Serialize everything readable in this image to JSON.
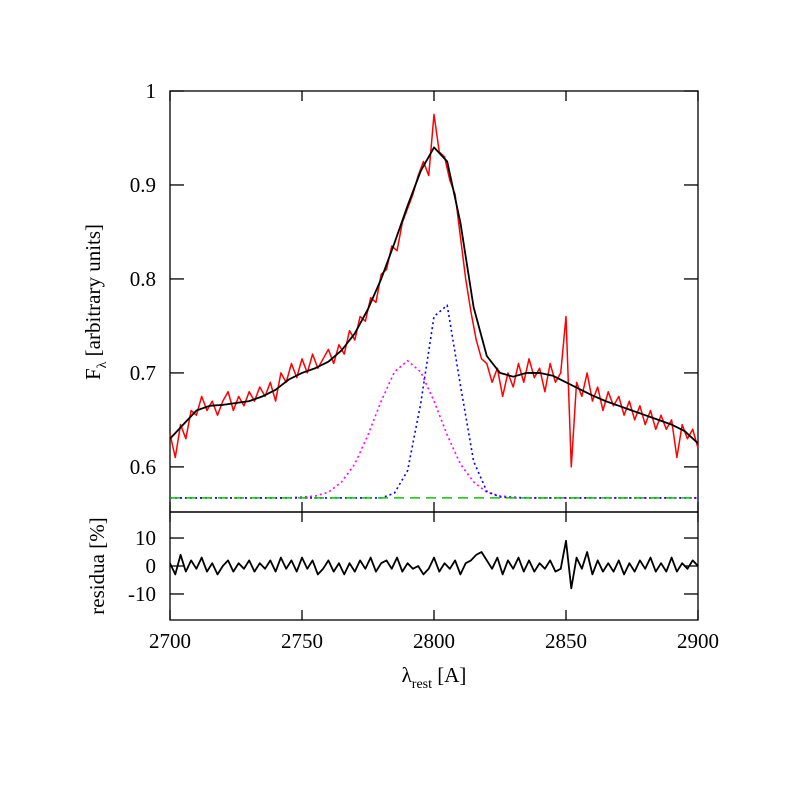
{
  "chart_data": [
    {
      "type": "line",
      "ylabel": {
        "main": "F",
        "sub": "λ",
        "rest": " [arbitrary units]"
      },
      "xlim": [
        2700,
        2900
      ],
      "ylim": [
        0.552,
        1
      ],
      "yticks": [
        0.6,
        0.7,
        0.8,
        0.9,
        1
      ],
      "series": [
        {
          "color": "#ff0000",
          "style": "solid",
          "width": 1.5,
          "x": [
            2700,
            2702,
            2704,
            2706,
            2708,
            2710,
            2712,
            2714,
            2716,
            2718,
            2720,
            2722,
            2724,
            2726,
            2728,
            2730,
            2732,
            2734,
            2736,
            2738,
            2740,
            2742,
            2744,
            2746,
            2748,
            2750,
            2752,
            2754,
            2756,
            2758,
            2760,
            2762,
            2764,
            2766,
            2768,
            2770,
            2772,
            2774,
            2776,
            2778,
            2780,
            2782,
            2784,
            2786,
            2788,
            2790,
            2792,
            2794,
            2796,
            2798,
            2800,
            2802,
            2804,
            2806,
            2808,
            2810,
            2812,
            2814,
            2816,
            2818,
            2820,
            2822,
            2824,
            2826,
            2828,
            2830,
            2832,
            2834,
            2836,
            2838,
            2840,
            2842,
            2844,
            2846,
            2848,
            2850,
            2852,
            2854,
            2856,
            2858,
            2860,
            2862,
            2864,
            2866,
            2868,
            2870,
            2872,
            2874,
            2876,
            2878,
            2880,
            2882,
            2884,
            2886,
            2888,
            2890,
            2892,
            2894,
            2896,
            2898,
            2900
          ],
          "values": [
            0.635,
            0.61,
            0.645,
            0.63,
            0.66,
            0.655,
            0.675,
            0.66,
            0.67,
            0.655,
            0.67,
            0.68,
            0.66,
            0.675,
            0.665,
            0.68,
            0.67,
            0.685,
            0.675,
            0.69,
            0.67,
            0.7,
            0.69,
            0.71,
            0.695,
            0.715,
            0.7,
            0.72,
            0.705,
            0.715,
            0.725,
            0.71,
            0.73,
            0.72,
            0.745,
            0.735,
            0.76,
            0.755,
            0.78,
            0.775,
            0.805,
            0.81,
            0.835,
            0.83,
            0.86,
            0.875,
            0.89,
            0.91,
            0.925,
            0.91,
            0.975,
            0.935,
            0.93,
            0.905,
            0.89,
            0.845,
            0.8,
            0.765,
            0.735,
            0.715,
            0.71,
            0.69,
            0.705,
            0.675,
            0.7,
            0.685,
            0.71,
            0.69,
            0.715,
            0.695,
            0.705,
            0.68,
            0.71,
            0.69,
            0.7,
            0.76,
            0.6,
            0.69,
            0.675,
            0.7,
            0.67,
            0.685,
            0.66,
            0.68,
            0.665,
            0.675,
            0.655,
            0.67,
            0.65,
            0.665,
            0.645,
            0.66,
            0.64,
            0.655,
            0.64,
            0.65,
            0.61,
            0.645,
            0.63,
            0.64,
            0.62
          ]
        },
        {
          "color": "#ff00ff",
          "style": "dotted",
          "width": 1.6,
          "x": [
            2700,
            2705,
            2710,
            2715,
            2720,
            2725,
            2730,
            2735,
            2740,
            2745,
            2750,
            2755,
            2760,
            2765,
            2770,
            2775,
            2780,
            2785,
            2790,
            2795,
            2800,
            2805,
            2810,
            2815,
            2820,
            2825,
            2830,
            2835,
            2840,
            2845,
            2850,
            2855,
            2860,
            2865,
            2870,
            2875,
            2880,
            2885,
            2890,
            2895,
            2900
          ],
          "values": [
            0.567,
            0.567,
            0.567,
            0.567,
            0.567,
            0.567,
            0.567,
            0.567,
            0.567,
            0.567,
            0.568,
            0.569,
            0.573,
            0.584,
            0.603,
            0.634,
            0.67,
            0.701,
            0.713,
            0.701,
            0.67,
            0.634,
            0.603,
            0.584,
            0.573,
            0.569,
            0.568,
            0.567,
            0.567,
            0.567,
            0.567,
            0.567,
            0.567,
            0.567,
            0.567,
            0.567,
            0.567,
            0.567,
            0.567,
            0.567,
            0.567
          ]
        },
        {
          "color": "#0000ff",
          "style": "dotted",
          "width": 1.6,
          "x": [
            2700,
            2705,
            2710,
            2715,
            2720,
            2725,
            2730,
            2735,
            2740,
            2745,
            2750,
            2755,
            2760,
            2765,
            2770,
            2775,
            2780,
            2785,
            2790,
            2795,
            2800,
            2805,
            2810,
            2815,
            2820,
            2825,
            2830,
            2835,
            2840,
            2845,
            2850,
            2855,
            2860,
            2865,
            2870,
            2875,
            2880,
            2885,
            2890,
            2895,
            2900
          ],
          "values": [
            0.567,
            0.567,
            0.567,
            0.567,
            0.567,
            0.567,
            0.567,
            0.567,
            0.567,
            0.567,
            0.567,
            0.567,
            0.567,
            0.567,
            0.567,
            0.567,
            0.567,
            0.572,
            0.596,
            0.668,
            0.76,
            0.772,
            0.687,
            0.606,
            0.574,
            0.568,
            0.567,
            0.567,
            0.567,
            0.567,
            0.567,
            0.567,
            0.567,
            0.567,
            0.567,
            0.567,
            0.567,
            0.567,
            0.567,
            0.567,
            0.567
          ]
        },
        {
          "color": "#00cc00",
          "style": "dashed",
          "width": 1.5,
          "x": [
            2700,
            2900
          ],
          "values": [
            0.567,
            0.567
          ]
        },
        {
          "color": "#000000",
          "style": "solid",
          "width": 1.8,
          "x": [
            2700,
            2705,
            2710,
            2715,
            2720,
            2725,
            2730,
            2735,
            2740,
            2745,
            2750,
            2755,
            2760,
            2765,
            2770,
            2775,
            2780,
            2785,
            2790,
            2795,
            2800,
            2805,
            2810,
            2815,
            2820,
            2825,
            2830,
            2835,
            2840,
            2845,
            2850,
            2855,
            2860,
            2865,
            2870,
            2875,
            2880,
            2885,
            2890,
            2895,
            2900
          ],
          "values": [
            0.63,
            0.645,
            0.66,
            0.665,
            0.666,
            0.668,
            0.67,
            0.675,
            0.682,
            0.693,
            0.7,
            0.705,
            0.712,
            0.724,
            0.742,
            0.768,
            0.8,
            0.838,
            0.878,
            0.915,
            0.94,
            0.925,
            0.86,
            0.77,
            0.718,
            0.7,
            0.696,
            0.7,
            0.7,
            0.697,
            0.69,
            0.683,
            0.676,
            0.67,
            0.665,
            0.66,
            0.655,
            0.65,
            0.645,
            0.638,
            0.625
          ]
        }
      ]
    },
    {
      "type": "line",
      "ylabel": "residua [%]",
      "xlabel": {
        "main": "λ",
        "sub": "rest",
        "rest": " [A]"
      },
      "xlim": [
        2700,
        2900
      ],
      "ylim": [
        -19.3,
        19.3
      ],
      "xticks": [
        2700,
        2750,
        2800,
        2850,
        2900
      ],
      "yticks": [
        -10,
        0,
        10
      ],
      "series": [
        {
          "color": "#000000",
          "style": "solid",
          "width": 1.8,
          "x": [
            2700,
            2702,
            2704,
            2706,
            2708,
            2710,
            2712,
            2714,
            2716,
            2718,
            2720,
            2722,
            2724,
            2726,
            2728,
            2730,
            2732,
            2734,
            2736,
            2738,
            2740,
            2742,
            2744,
            2746,
            2748,
            2750,
            2752,
            2754,
            2756,
            2758,
            2760,
            2762,
            2764,
            2766,
            2768,
            2770,
            2772,
            2774,
            2776,
            2778,
            2780,
            2782,
            2784,
            2786,
            2788,
            2790,
            2792,
            2794,
            2796,
            2798,
            2800,
            2802,
            2804,
            2806,
            2808,
            2810,
            2812,
            2814,
            2816,
            2818,
            2820,
            2822,
            2824,
            2826,
            2828,
            2830,
            2832,
            2834,
            2836,
            2838,
            2840,
            2842,
            2844,
            2846,
            2848,
            2850,
            2852,
            2854,
            2856,
            2858,
            2860,
            2862,
            2864,
            2866,
            2868,
            2870,
            2872,
            2874,
            2876,
            2878,
            2880,
            2882,
            2884,
            2886,
            2888,
            2890,
            2892,
            2894,
            2896,
            2898,
            2900
          ],
          "values": [
            1,
            -3,
            4,
            -2,
            2,
            -1,
            3,
            -2,
            1,
            -3,
            0,
            2,
            -2,
            1,
            -1,
            2,
            -2,
            1,
            -1,
            2,
            -2,
            3,
            -1,
            2,
            -2,
            3,
            -1,
            2,
            -3,
            -1,
            2,
            -2,
            1,
            -3,
            1,
            -2,
            2,
            -1,
            3,
            -2,
            1,
            2,
            -1,
            3,
            -2,
            1,
            -1,
            0,
            -3,
            -1,
            3,
            -2,
            1,
            -1,
            2,
            -3,
            1,
            2,
            4,
            5,
            2,
            -1,
            3,
            -3,
            2,
            -1,
            3,
            -2,
            2,
            -2,
            1,
            -1,
            2,
            -2,
            -1,
            9,
            -8,
            3,
            -1,
            5,
            -3,
            2,
            -2,
            1,
            -2,
            2,
            -3,
            1,
            -2,
            2,
            -1,
            3,
            -2,
            1,
            -2,
            3,
            -2,
            1,
            -1,
            2,
            0
          ]
        }
      ]
    }
  ]
}
